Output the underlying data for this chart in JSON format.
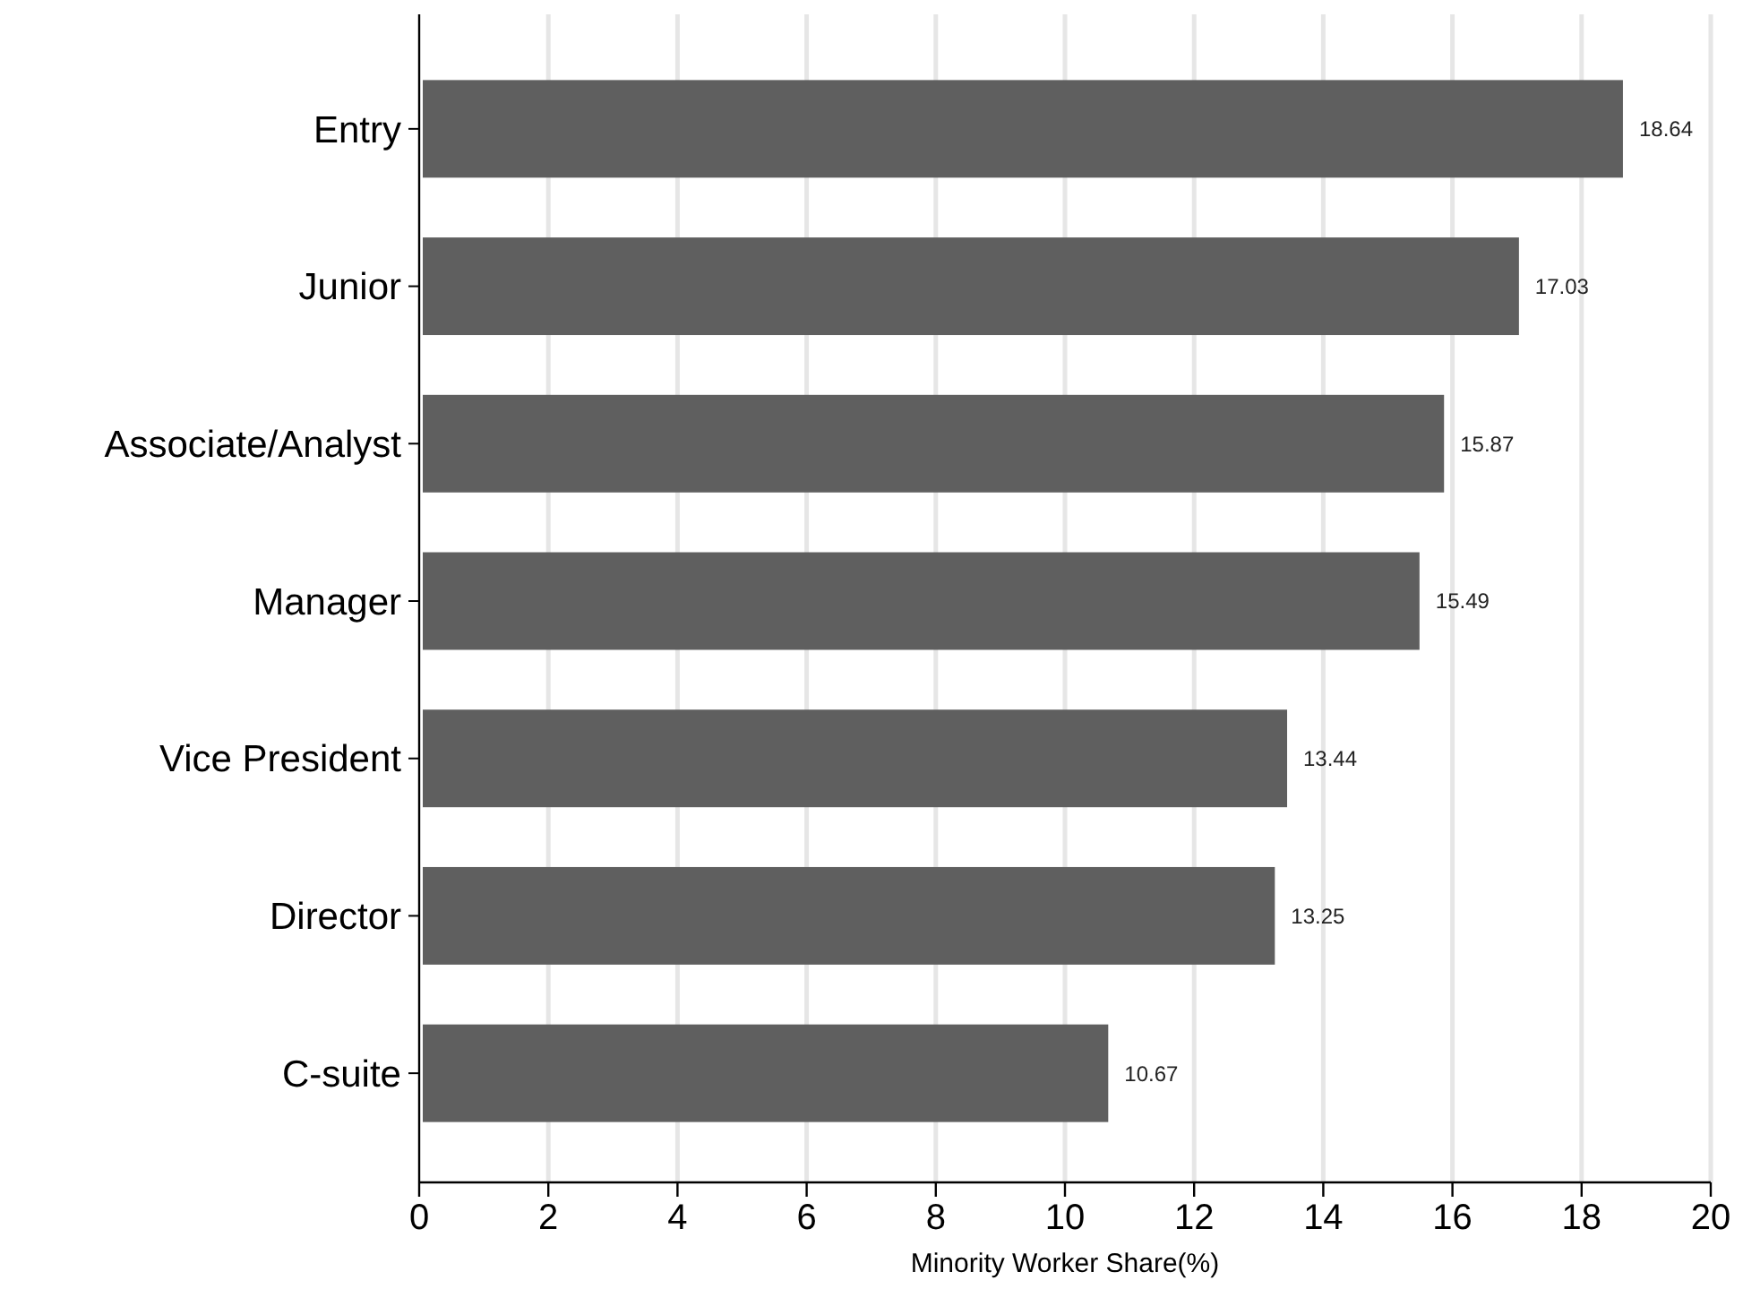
{
  "chart_data": {
    "type": "bar",
    "orientation": "horizontal",
    "xlabel": "Minority Worker Share(%)",
    "categories": [
      "Entry",
      "Junior",
      "Associate/Analyst",
      "Manager",
      "Vice President",
      "Director",
      "C-suite"
    ],
    "values": [
      18.64,
      17.03,
      15.87,
      15.49,
      13.44,
      13.25,
      10.67
    ],
    "color": "#5f5f5f",
    "xlim": [
      0,
      20
    ],
    "xticks": [
      0,
      2,
      4,
      6,
      8,
      10,
      12,
      14,
      16,
      18,
      20
    ],
    "grid": "x",
    "data_labels": true
  }
}
